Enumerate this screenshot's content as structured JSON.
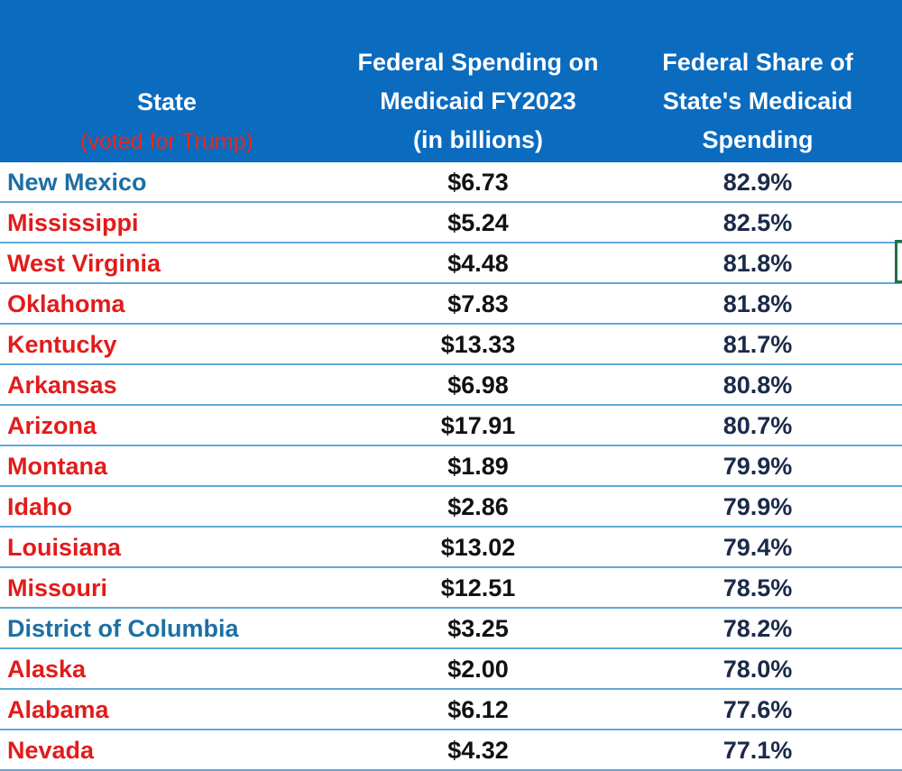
{
  "table": {
    "headers": {
      "state_line1": "State",
      "state_line2": "(voted for Trump)",
      "spend_line1": "Federal Spending on",
      "spend_line2": "Medicaid  FY2023",
      "spend_line3": "(in billions)",
      "share_line1": "Federal Share of",
      "share_line2": "State's Medicaid",
      "share_line3": "Spending"
    },
    "colors": {
      "header_bg": "#0a6bbf",
      "trump_state": "#e21b1b",
      "other_state": "#1d6fa3",
      "row_border": "#5fa9d8"
    },
    "rows": [
      {
        "state": "New Mexico",
        "voted_trump": false,
        "spending": "$6.73",
        "share": "82.9%"
      },
      {
        "state": "Mississippi",
        "voted_trump": true,
        "spending": "$5.24",
        "share": "82.5%"
      },
      {
        "state": "West Virginia",
        "voted_trump": true,
        "spending": "$4.48",
        "share": "81.8%"
      },
      {
        "state": "Oklahoma",
        "voted_trump": true,
        "spending": "$7.83",
        "share": "81.8%"
      },
      {
        "state": "Kentucky",
        "voted_trump": true,
        "spending": "$13.33",
        "share": "81.7%"
      },
      {
        "state": "Arkansas",
        "voted_trump": true,
        "spending": "$6.98",
        "share": "80.8%"
      },
      {
        "state": "Arizona",
        "voted_trump": true,
        "spending": "$17.91",
        "share": "80.7%"
      },
      {
        "state": "Montana",
        "voted_trump": true,
        "spending": "$1.89",
        "share": "79.9%"
      },
      {
        "state": "Idaho",
        "voted_trump": true,
        "spending": "$2.86",
        "share": "79.9%"
      },
      {
        "state": "Louisiana",
        "voted_trump": true,
        "spending": "$13.02",
        "share": "79.4%"
      },
      {
        "state": "Missouri",
        "voted_trump": true,
        "spending": "$12.51",
        "share": "78.5%"
      },
      {
        "state": "District of Columbia",
        "voted_trump": false,
        "spending": "$3.25",
        "share": "78.2%"
      },
      {
        "state": "Alaska",
        "voted_trump": true,
        "spending": "$2.00",
        "share": "78.0%"
      },
      {
        "state": "Alabama",
        "voted_trump": true,
        "spending": "$6.12",
        "share": "77.6%"
      },
      {
        "state": "Nevada",
        "voted_trump": true,
        "spending": "$4.32",
        "share": "77.1%"
      }
    ]
  }
}
